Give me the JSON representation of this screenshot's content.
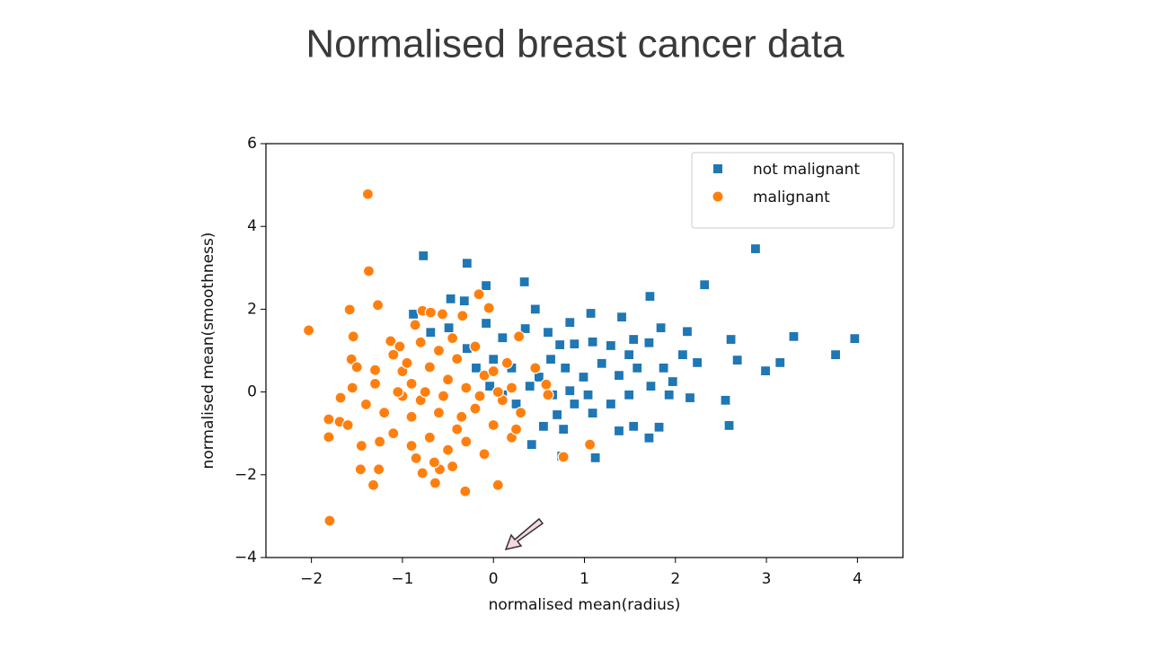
{
  "title": "Normalised breast cancer data",
  "chart_data": {
    "type": "scatter",
    "xlabel": "normalised mean(radius)",
    "ylabel": "normalised mean(smoothness)",
    "xlim": [
      -2.5,
      4.5
    ],
    "ylim": [
      -4,
      6
    ],
    "xticks": [
      {
        "value": -2,
        "label": "−2"
      },
      {
        "value": -1,
        "label": "−1"
      },
      0,
      1,
      2,
      3,
      4
    ],
    "yticks": [
      {
        "value": -4,
        "label": "−4"
      },
      {
        "value": -2,
        "label": "−2"
      },
      0,
      2,
      4,
      6
    ],
    "legend": "upper right",
    "series": [
      {
        "name": "not malignant",
        "color": "#1f77b4",
        "marker": "square",
        "x": [
          -0.77,
          -0.29,
          -0.08,
          0.34,
          -0.47,
          -0.32,
          1.72,
          2.32,
          2.88,
          0.46,
          1.07,
          1.41,
          0.84,
          1.84,
          2.13,
          2.61,
          3.3,
          3.97,
          3.76,
          3.15,
          2.99,
          2.68,
          2.24,
          2.59,
          2.55,
          2.16,
          1.97,
          1.87,
          1.71,
          1.54,
          1.29,
          1.09,
          0.89,
          0.73,
          0.6,
          0.35,
          0.1,
          -0.08,
          0.63,
          0.5,
          0.79,
          0.99,
          1.19,
          1.38,
          1.58,
          1.73,
          1.93,
          1.49,
          1.29,
          1.09,
          0.89,
          0.7,
          0.55,
          0.42,
          0.77,
          1.12,
          1.38,
          1.71,
          1.82,
          1.54,
          1.04,
          0.84,
          0.65,
          0.4,
          0.2,
          0.0,
          -0.19,
          -0.29,
          -0.49,
          -0.69,
          -0.88,
          0.75,
          1.49,
          2.08,
          0.25,
          0.1,
          -0.04
        ],
        "y": [
          3.29,
          3.11,
          2.57,
          2.66,
          2.25,
          2.2,
          2.31,
          2.59,
          3.46,
          2.0,
          1.9,
          1.81,
          1.68,
          1.55,
          1.46,
          1.27,
          1.34,
          1.29,
          0.9,
          0.71,
          0.51,
          0.77,
          0.71,
          -0.81,
          -0.2,
          -0.14,
          0.25,
          0.58,
          1.19,
          1.27,
          1.12,
          1.21,
          1.16,
          1.14,
          1.44,
          1.53,
          1.31,
          1.66,
          0.79,
          0.36,
          0.58,
          0.36,
          0.69,
          0.4,
          0.58,
          0.14,
          -0.07,
          -0.07,
          -0.29,
          -0.51,
          -0.29,
          -0.55,
          -0.83,
          -1.27,
          -0.9,
          -1.59,
          -0.94,
          -1.11,
          -0.85,
          -0.83,
          -0.07,
          0.03,
          -0.07,
          0.14,
          0.58,
          0.79,
          0.58,
          1.05,
          1.55,
          1.44,
          1.88,
          -1.55,
          0.9,
          0.9,
          -0.29,
          -0.07,
          0.14
        ]
      },
      {
        "name": "malignant",
        "color": "#ff7f0e",
        "marker": "circle",
        "x": [
          -1.38,
          -1.37,
          -2.03,
          -1.8,
          -1.58,
          -1.27,
          -1.54,
          -1.68,
          -1.81,
          -1.81,
          -1.69,
          -1.46,
          -1.26,
          -1.56,
          -1.3,
          -1.13,
          -1.03,
          -0.86,
          -0.78,
          -0.69,
          -0.56,
          -0.34,
          -0.16,
          -0.05,
          -1.32,
          -0.78,
          -0.59,
          -0.31,
          0.05,
          -0.64,
          0.77,
          1.06,
          0.58,
          0.46,
          0.28,
          0.6,
          -1.1,
          -1.0,
          -0.9,
          -0.8,
          -0.7,
          -0.6,
          -0.5,
          -0.4,
          -0.3,
          -0.2,
          -0.1,
          0.0,
          0.1,
          0.2,
          -1.2,
          -1.1,
          -0.9,
          -0.7,
          -0.5,
          -0.3,
          -0.1,
          -1.3,
          -1.4,
          -1.5,
          -0.8,
          -0.6,
          -0.4,
          -0.2,
          0.0,
          0.2,
          0.3,
          -1.0,
          -0.9,
          -0.75,
          -0.55,
          -0.35,
          -0.15,
          0.05,
          -1.25,
          -0.65,
          -0.45,
          -0.85,
          -1.05,
          -0.95,
          -0.45,
          0.15,
          -1.45,
          -1.6,
          -1.55,
          0.25
        ],
        "y": [
          4.78,
          2.92,
          1.49,
          -3.11,
          1.99,
          2.1,
          1.34,
          -0.14,
          -0.66,
          -1.09,
          -0.72,
          -1.87,
          -1.87,
          0.79,
          0.53,
          1.23,
          1.1,
          1.62,
          1.96,
          1.92,
          1.88,
          1.84,
          2.36,
          2.03,
          -2.25,
          -1.96,
          -1.87,
          -2.4,
          -2.25,
          -2.2,
          -1.57,
          -1.27,
          0.18,
          0.58,
          1.34,
          -0.07,
          0.9,
          0.5,
          0.2,
          -0.2,
          0.6,
          -0.5,
          0.3,
          -0.9,
          0.1,
          -0.4,
          0.4,
          -0.8,
          -0.2,
          -1.1,
          -0.5,
          -1.0,
          -1.3,
          -1.1,
          -1.4,
          -1.2,
          -1.5,
          0.2,
          -0.3,
          0.6,
          1.2,
          1.0,
          0.8,
          1.1,
          0.5,
          0.1,
          -0.5,
          -0.1,
          -0.6,
          0.0,
          -0.1,
          -0.6,
          -0.1,
          0.0,
          -1.2,
          -1.7,
          -1.8,
          -1.6,
          0.0,
          0.7,
          1.3,
          0.7,
          -1.3,
          -0.8,
          0.1,
          -0.9
        ]
      }
    ]
  }
}
